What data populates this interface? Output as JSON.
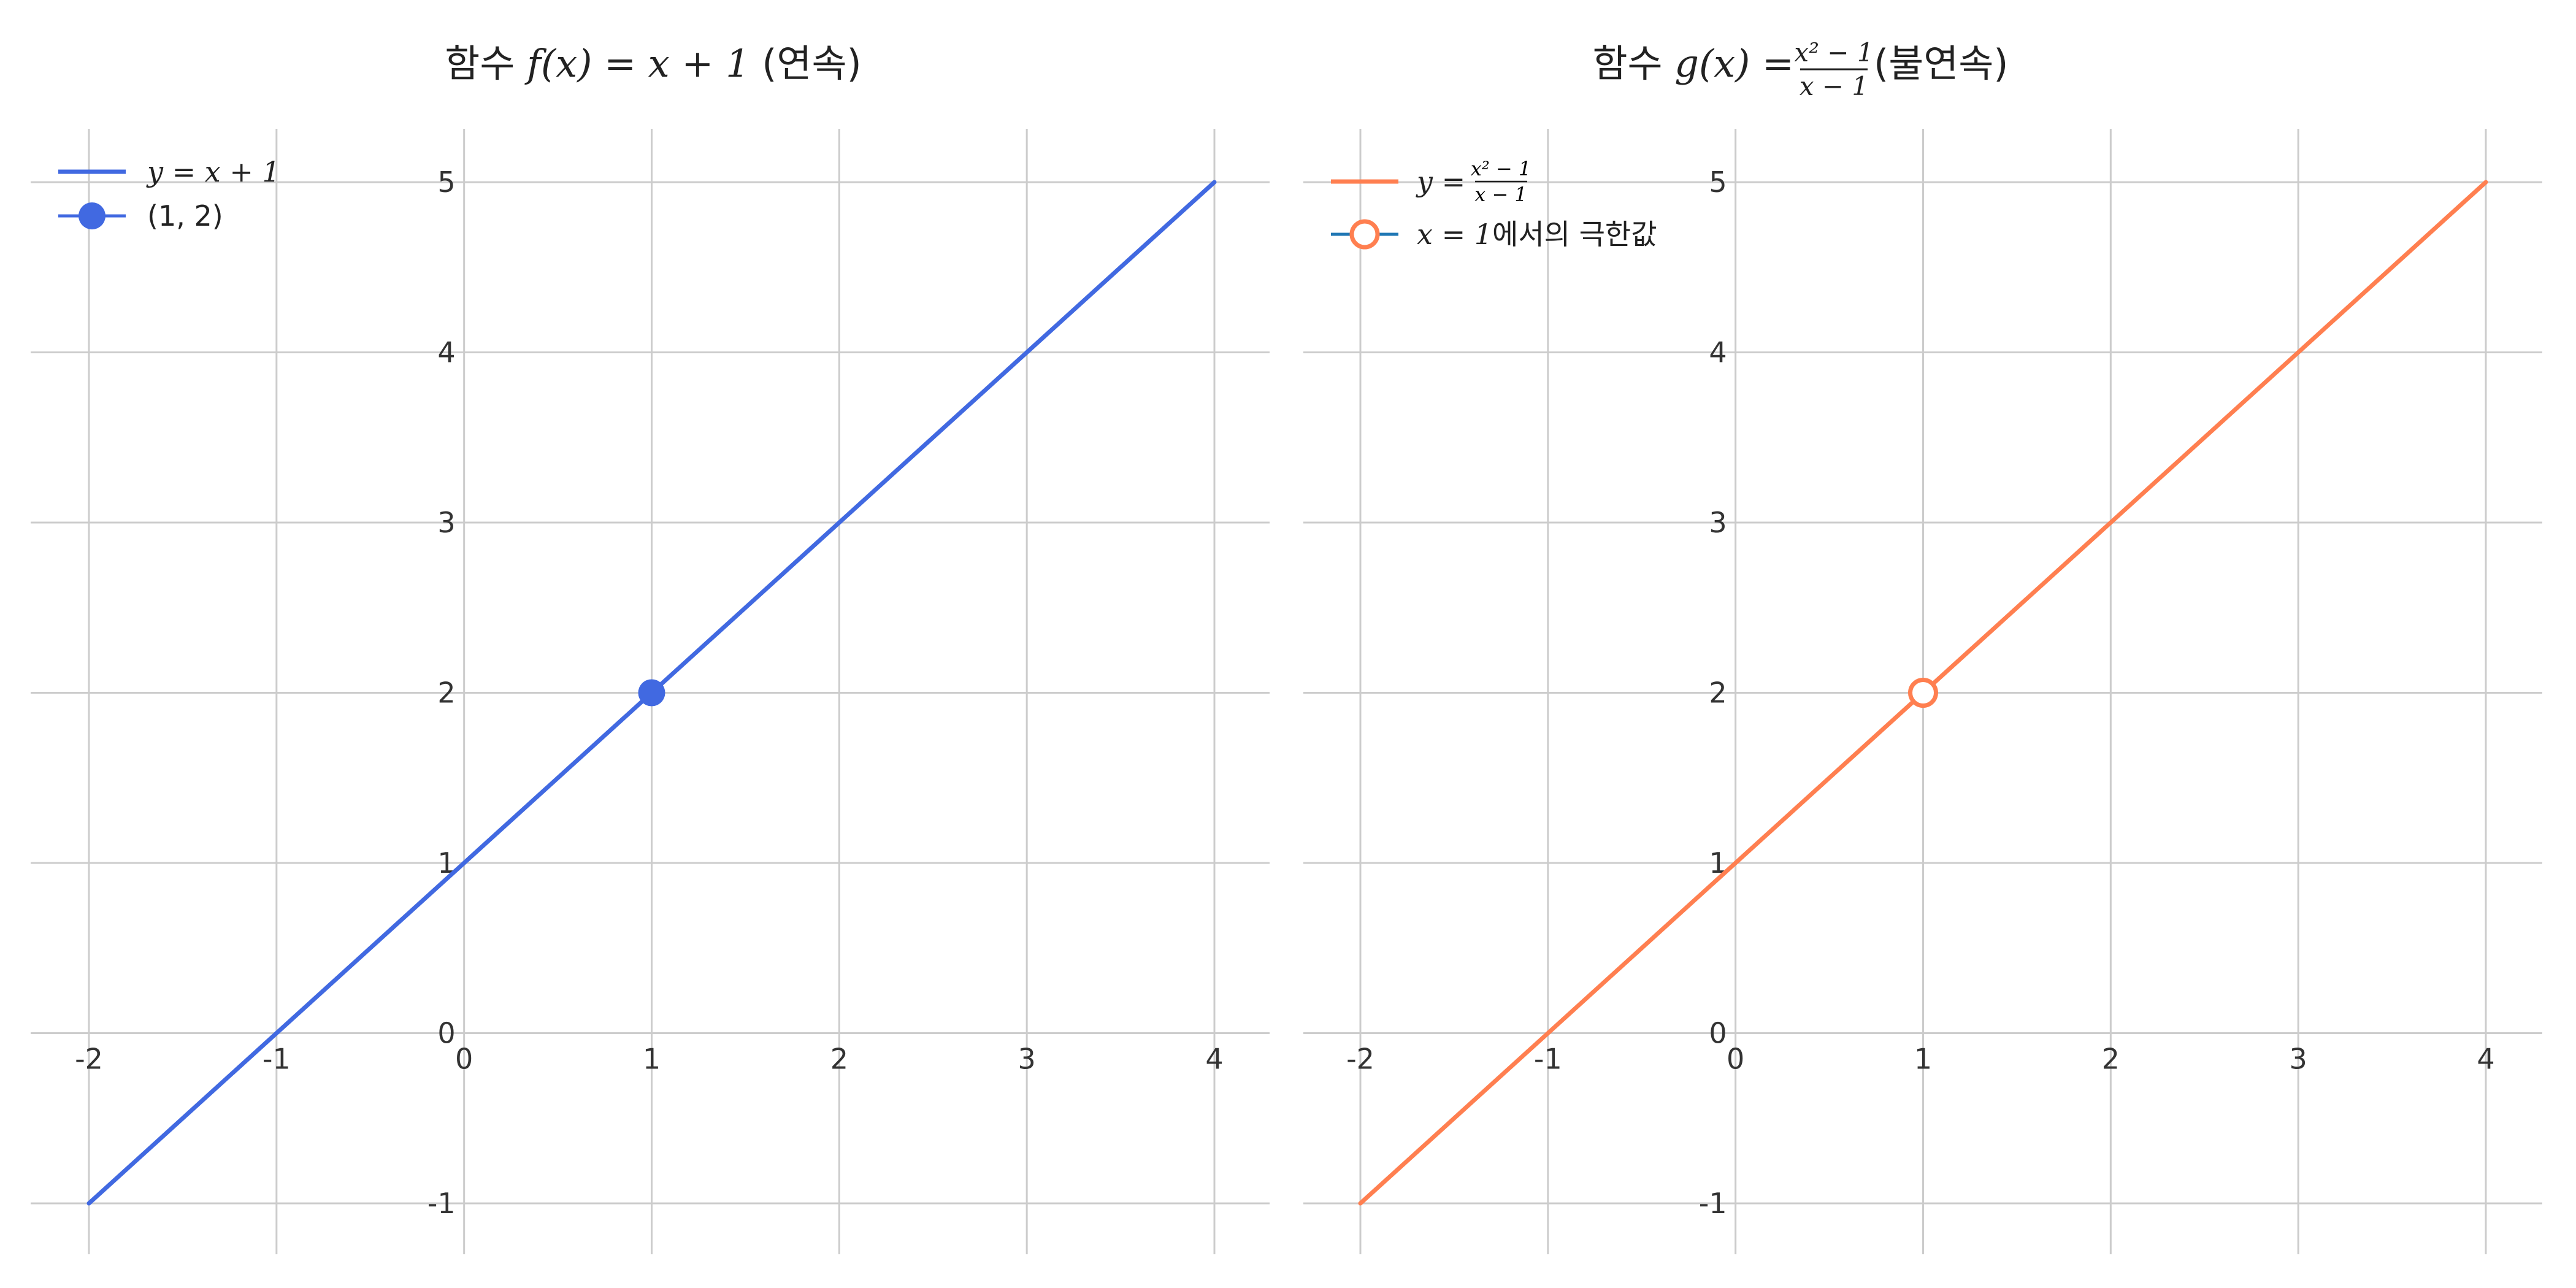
{
  "colors": {
    "left_line": "#4169E1",
    "right_line": "#FF7F50",
    "grid": "#CCCCCC",
    "axis": "#BBBBBB"
  },
  "chart_data": [
    {
      "type": "line",
      "title": "함수 f(x) = x + 1 (연속)",
      "title_prefix": "함수 ",
      "title_math": "f(x) = x + 1",
      "title_suffix": " (연속)",
      "xlim": [
        -2,
        4
      ],
      "ylim": [
        -1,
        5
      ],
      "x_ticks": [
        -2,
        -1,
        0,
        1,
        2,
        3,
        4
      ],
      "y_ticks": [
        -1,
        0,
        1,
        2,
        3,
        4,
        5
      ],
      "grid": true,
      "legend_position": "top-left",
      "series": [
        {
          "name": "y = x + 1",
          "kind": "line",
          "color": "#4169E1",
          "x": [
            -2,
            4
          ],
          "y": [
            -1,
            5
          ]
        },
        {
          "name": "(1, 2)",
          "kind": "point",
          "marker": "filled-circle",
          "color": "#4169E1",
          "x": [
            1
          ],
          "y": [
            2
          ]
        }
      ]
    },
    {
      "type": "line",
      "title": "함수 g(x) = (x² − 1)/(x − 1) (불연속)",
      "title_prefix": "함수 ",
      "title_math_lhs": "g(x) =",
      "title_frac_num": "x² − 1",
      "title_frac_den": "x − 1",
      "title_suffix": " (불연속)",
      "xlim": [
        -2,
        4
      ],
      "ylim": [
        -1,
        5
      ],
      "x_ticks": [
        -2,
        -1,
        0,
        1,
        2,
        3,
        4
      ],
      "y_ticks": [
        -1,
        0,
        1,
        2,
        3,
        4,
        5
      ],
      "grid": true,
      "legend_position": "top-left",
      "series": [
        {
          "name": "y = (x² − 1)/(x − 1)",
          "legend_lhs": "y =",
          "legend_num": "x² − 1",
          "legend_den": "x − 1",
          "kind": "line",
          "color": "#FF7F50",
          "x": [
            -2,
            4
          ],
          "y": [
            -1,
            5
          ]
        },
        {
          "name": "x = 1에서의 극한값",
          "legend_math": "x = 1",
          "legend_text": "에서의 극한값",
          "kind": "point",
          "marker": "open-circle",
          "color": "#FF7F50",
          "x": [
            1
          ],
          "y": [
            2
          ]
        }
      ]
    }
  ]
}
